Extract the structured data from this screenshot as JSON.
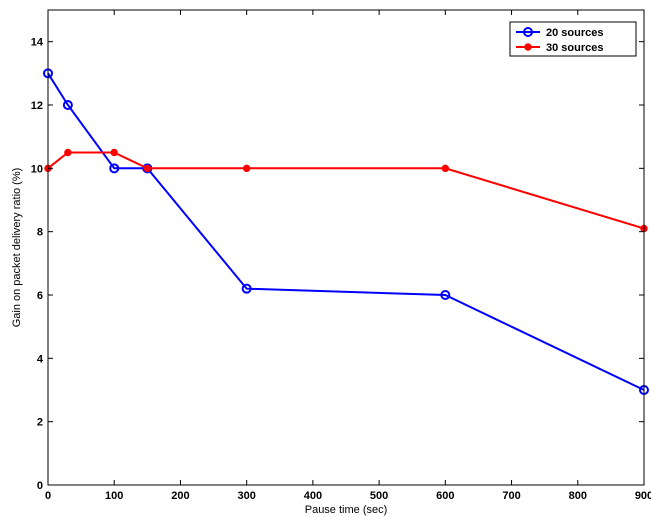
{
  "chart_data": {
    "type": "line",
    "xlabel": "Pause time (sec)",
    "ylabel": "Gain on packet delivery ratio (%)",
    "xlim": [
      0,
      900
    ],
    "ylim": [
      0,
      15
    ],
    "xticks": [
      0,
      100,
      200,
      300,
      400,
      500,
      600,
      700,
      800,
      900
    ],
    "yticks": [
      0,
      2,
      4,
      6,
      8,
      10,
      12,
      14
    ],
    "grid": false,
    "legend_position": "top-right",
    "series": [
      {
        "name": "20 sources",
        "color": "#0000ff",
        "marker": "open-circle",
        "x": [
          0,
          30,
          100,
          150,
          300,
          600,
          900
        ],
        "y": [
          13,
          12,
          10,
          10,
          6.2,
          6,
          3
        ]
      },
      {
        "name": "30 sources",
        "color": "#ff0000",
        "marker": "filled-dot",
        "x": [
          0,
          30,
          100,
          150,
          300,
          600,
          900
        ],
        "y": [
          10,
          10.5,
          10.5,
          10,
          10,
          10,
          8.1
        ]
      }
    ]
  }
}
